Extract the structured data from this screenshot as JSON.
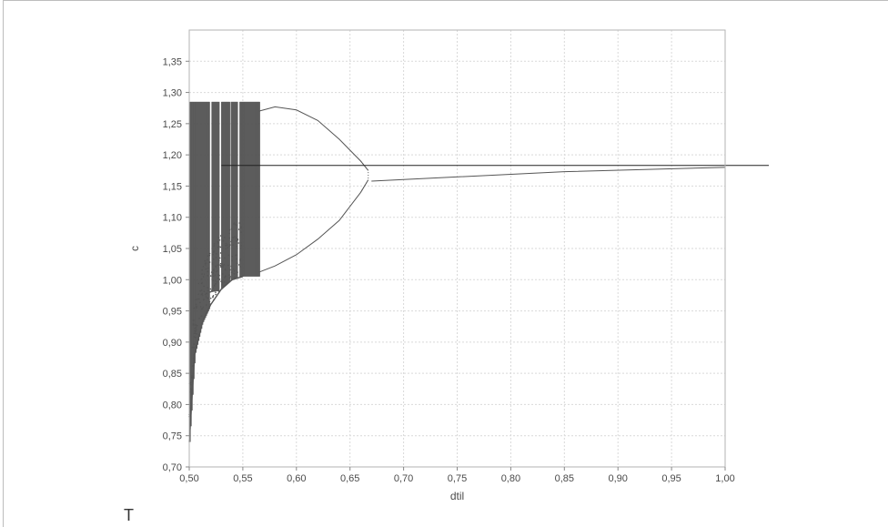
{
  "corner_text": "T",
  "chart_data": {
    "type": "scatter",
    "title": "",
    "xlabel": "dtil",
    "ylabel": "c",
    "xlim": [
      0.5,
      1.0
    ],
    "ylim": [
      0.7,
      1.4
    ],
    "x_ticks": [
      "0,50",
      "0,55",
      "0,60",
      "0,65",
      "0,70",
      "0,75",
      "0,80",
      "0,85",
      "0,90",
      "0,95",
      "1,00"
    ],
    "y_ticks": [
      "0,70",
      "0,75",
      "0,80",
      "0,85",
      "0,90",
      "0,95",
      "1,00",
      "1,05",
      "1,10",
      "1,15",
      "1,20",
      "1,25",
      "1,30",
      "1,35"
    ],
    "grid": true,
    "colors": {
      "points": "#555555",
      "grid": "#d9d9d9",
      "frame": "#b3b3b3"
    },
    "regions": {
      "chaotic_band": {
        "x_range": [
          0.5,
          0.565
        ],
        "c_upper": 1.285,
        "c_lower_at_0_565": 1.0
      },
      "lower_tail": [
        [
          0.5,
          0.74
        ],
        [
          0.505,
          0.88
        ],
        [
          0.512,
          0.93
        ],
        [
          0.52,
          0.96
        ],
        [
          0.53,
          0.985
        ],
        [
          0.54,
          1.0
        ],
        [
          0.55,
          1.005
        ]
      ],
      "period2_upper": [
        [
          0.565,
          1.27
        ],
        [
          0.58,
          1.277
        ],
        [
          0.6,
          1.272
        ],
        [
          0.62,
          1.255
        ],
        [
          0.64,
          1.225
        ],
        [
          0.66,
          1.19
        ],
        [
          0.667,
          1.175
        ]
      ],
      "period2_lower": [
        [
          0.565,
          1.012
        ],
        [
          0.58,
          1.022
        ],
        [
          0.6,
          1.04
        ],
        [
          0.62,
          1.065
        ],
        [
          0.64,
          1.095
        ],
        [
          0.66,
          1.14
        ],
        [
          0.667,
          1.16
        ]
      ],
      "fixed_point": [
        [
          0.67,
          1.158
        ],
        [
          0.85,
          1.173
        ],
        [
          1.0,
          1.18
        ]
      ],
      "reference_level": 1.183
    }
  }
}
